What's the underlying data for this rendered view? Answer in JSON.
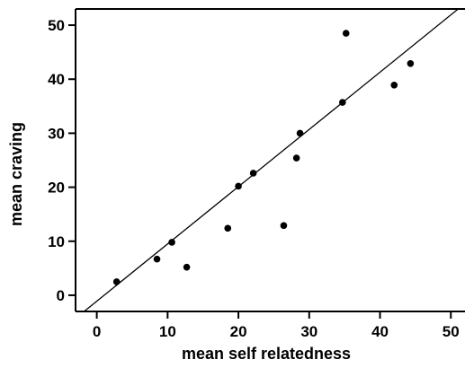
{
  "chart_data": {
    "type": "scatter",
    "title": "",
    "xlabel": "mean self relatedness",
    "ylabel": "mean craving",
    "xlim": [
      -3,
      52
    ],
    "ylim": [
      -3,
      53
    ],
    "x_ticks": [
      0,
      10,
      20,
      30,
      40,
      50
    ],
    "y_ticks": [
      0,
      10,
      20,
      30,
      40,
      50
    ],
    "grid": false,
    "legend": "none",
    "points": [
      {
        "x": 2.8,
        "y": 2.5
      },
      {
        "x": 8.5,
        "y": 6.7
      },
      {
        "x": 10.6,
        "y": 9.8
      },
      {
        "x": 12.7,
        "y": 5.2
      },
      {
        "x": 18.5,
        "y": 12.4
      },
      {
        "x": 20.0,
        "y": 20.2
      },
      {
        "x": 22.1,
        "y": 22.6
      },
      {
        "x": 26.4,
        "y": 12.9
      },
      {
        "x": 28.2,
        "y": 25.4
      },
      {
        "x": 28.7,
        "y": 30.0
      },
      {
        "x": 34.7,
        "y": 35.7
      },
      {
        "x": 35.2,
        "y": 48.5
      },
      {
        "x": 42.0,
        "y": 38.9
      },
      {
        "x": 44.3,
        "y": 42.9
      }
    ],
    "fit_line": {
      "slope": 1.06,
      "intercept": -1.1
    },
    "colors": {
      "points": "#000000",
      "line": "#000000",
      "axes": "#000000"
    }
  }
}
